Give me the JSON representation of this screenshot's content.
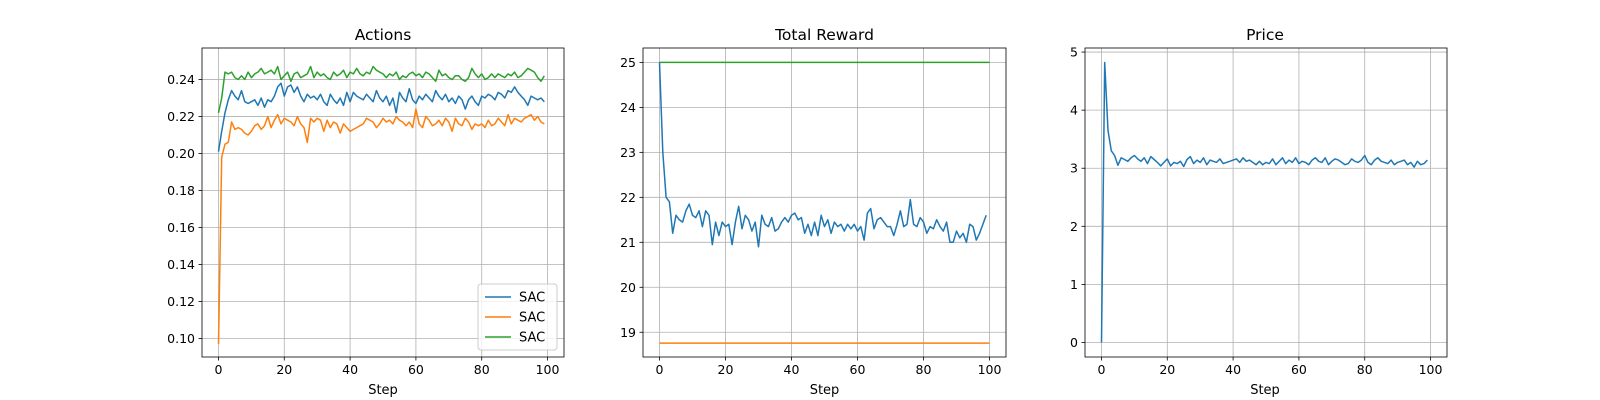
{
  "colors": {
    "blue": "#1f77b4",
    "orange": "#ff7f0e",
    "green": "#2ca02c",
    "grid": "#b0b0b0"
  },
  "chart_data": [
    {
      "type": "line",
      "title": "Actions",
      "xlabel": "Step",
      "ylabel": "",
      "xlim": [
        -5,
        105
      ],
      "ylim": [
        0.09,
        0.257
      ],
      "xticks": [
        0,
        20,
        40,
        60,
        80,
        100
      ],
      "yticks": [
        0.1,
        0.12,
        0.14,
        0.16,
        0.18,
        0.2,
        0.22,
        0.24
      ],
      "ytick_decimals": 2,
      "grid": true,
      "legend": "lower-right",
      "series": [
        {
          "name": "SAC",
          "color": "#1f77b4",
          "x_start": 0,
          "x_step": 1,
          "values": [
            0.201,
            0.212,
            0.222,
            0.229,
            0.234,
            0.231,
            0.229,
            0.234,
            0.228,
            0.227,
            0.228,
            0.229,
            0.226,
            0.23,
            0.225,
            0.229,
            0.228,
            0.231,
            0.236,
            0.238,
            0.231,
            0.236,
            0.237,
            0.233,
            0.236,
            0.231,
            0.228,
            0.232,
            0.23,
            0.231,
            0.229,
            0.232,
            0.228,
            0.226,
            0.232,
            0.229,
            0.227,
            0.23,
            0.226,
            0.233,
            0.228,
            0.233,
            0.231,
            0.23,
            0.229,
            0.232,
            0.23,
            0.228,
            0.234,
            0.23,
            0.228,
            0.231,
            0.226,
            0.23,
            0.222,
            0.233,
            0.23,
            0.228,
            0.235,
            0.229,
            0.227,
            0.231,
            0.229,
            0.232,
            0.23,
            0.228,
            0.234,
            0.231,
            0.229,
            0.232,
            0.228,
            0.23,
            0.227,
            0.231,
            0.229,
            0.224,
            0.229,
            0.231,
            0.228,
            0.226,
            0.231,
            0.23,
            0.232,
            0.231,
            0.229,
            0.233,
            0.232,
            0.23,
            0.234,
            0.233,
            0.236,
            0.233,
            0.231,
            0.229,
            0.226,
            0.231,
            0.23,
            0.229,
            0.23,
            0.228
          ]
        },
        {
          "name": "SAC",
          "color": "#ff7f0e",
          "x_start": 0,
          "x_step": 1,
          "values": [
            0.097,
            0.198,
            0.205,
            0.206,
            0.217,
            0.213,
            0.214,
            0.213,
            0.211,
            0.21,
            0.212,
            0.215,
            0.216,
            0.213,
            0.215,
            0.22,
            0.214,
            0.218,
            0.221,
            0.216,
            0.219,
            0.218,
            0.217,
            0.215,
            0.22,
            0.216,
            0.214,
            0.206,
            0.219,
            0.217,
            0.219,
            0.218,
            0.212,
            0.218,
            0.214,
            0.217,
            0.216,
            0.211,
            0.216,
            0.214,
            0.212,
            0.213,
            0.214,
            0.215,
            0.216,
            0.219,
            0.218,
            0.217,
            0.214,
            0.216,
            0.219,
            0.217,
            0.218,
            0.216,
            0.22,
            0.218,
            0.217,
            0.215,
            0.217,
            0.214,
            0.224,
            0.216,
            0.214,
            0.22,
            0.218,
            0.215,
            0.216,
            0.218,
            0.215,
            0.219,
            0.217,
            0.212,
            0.219,
            0.216,
            0.215,
            0.219,
            0.217,
            0.213,
            0.216,
            0.215,
            0.216,
            0.214,
            0.218,
            0.215,
            0.216,
            0.219,
            0.217,
            0.215,
            0.221,
            0.216,
            0.219,
            0.218,
            0.217,
            0.219,
            0.22,
            0.221,
            0.218,
            0.22,
            0.217,
            0.216
          ]
        },
        {
          "name": "SAC",
          "color": "#2ca02c",
          "x_start": 0,
          "x_step": 1,
          "values": [
            0.222,
            0.23,
            0.244,
            0.243,
            0.244,
            0.241,
            0.24,
            0.242,
            0.24,
            0.244,
            0.241,
            0.243,
            0.244,
            0.246,
            0.243,
            0.244,
            0.245,
            0.243,
            0.247,
            0.24,
            0.242,
            0.244,
            0.239,
            0.243,
            0.244,
            0.241,
            0.242,
            0.243,
            0.247,
            0.241,
            0.244,
            0.242,
            0.243,
            0.241,
            0.24,
            0.244,
            0.242,
            0.243,
            0.245,
            0.241,
            0.244,
            0.243,
            0.246,
            0.243,
            0.242,
            0.244,
            0.243,
            0.247,
            0.245,
            0.244,
            0.243,
            0.241,
            0.243,
            0.242,
            0.244,
            0.24,
            0.242,
            0.241,
            0.243,
            0.244,
            0.242,
            0.243,
            0.241,
            0.244,
            0.243,
            0.241,
            0.239,
            0.245,
            0.242,
            0.243,
            0.241,
            0.24,
            0.242,
            0.242,
            0.24,
            0.239,
            0.241,
            0.246,
            0.243,
            0.241,
            0.243,
            0.24,
            0.241,
            0.243,
            0.241,
            0.243,
            0.242,
            0.241,
            0.243,
            0.242,
            0.244,
            0.241,
            0.242,
            0.244,
            0.246,
            0.245,
            0.244,
            0.241,
            0.239,
            0.242
          ]
        }
      ]
    },
    {
      "type": "line",
      "title": "Total Reward",
      "xlabel": "Step",
      "ylabel": "",
      "xlim": [
        -5,
        105
      ],
      "ylim": [
        18.45,
        25.32
      ],
      "xticks": [
        0,
        20,
        40,
        60,
        80,
        100
      ],
      "yticks": [
        19,
        20,
        21,
        22,
        23,
        24,
        25
      ],
      "ytick_decimals": 0,
      "grid": true,
      "legend": "none",
      "series": [
        {
          "name": "",
          "color": "#2ca02c",
          "x": [
            0,
            100
          ],
          "y": [
            25,
            25
          ]
        },
        {
          "name": "",
          "color": "#ff7f0e",
          "x": [
            0,
            100
          ],
          "y": [
            18.76,
            18.76
          ]
        },
        {
          "name": "",
          "color": "#1f77b4",
          "x_start": 0,
          "x_step": 1,
          "values": [
            25.0,
            23.0,
            22.0,
            21.9,
            21.2,
            21.6,
            21.5,
            21.45,
            21.7,
            21.85,
            21.6,
            21.55,
            21.7,
            21.35,
            21.7,
            21.6,
            20.95,
            21.45,
            21.15,
            21.45,
            21.35,
            21.4,
            20.95,
            21.45,
            21.8,
            21.3,
            21.6,
            21.5,
            21.25,
            21.45,
            20.9,
            21.6,
            21.4,
            21.35,
            21.55,
            21.25,
            21.3,
            21.45,
            21.55,
            21.45,
            21.6,
            21.65,
            21.5,
            21.55,
            21.2,
            21.4,
            21.15,
            21.45,
            21.15,
            21.6,
            21.35,
            21.5,
            21.2,
            21.45,
            21.35,
            21.4,
            21.25,
            21.4,
            21.3,
            21.4,
            21.25,
            21.35,
            21.05,
            21.65,
            21.75,
            21.3,
            21.5,
            21.55,
            21.45,
            21.35,
            21.35,
            21.15,
            21.4,
            21.7,
            21.35,
            21.4,
            21.95,
            21.4,
            21.35,
            21.55,
            21.45,
            21.2,
            21.35,
            21.3,
            21.5,
            21.35,
            21.25,
            21.45,
            21.0,
            21.0,
            21.25,
            21.1,
            21.2,
            21.0,
            21.4,
            21.35,
            21.05,
            21.2,
            21.4,
            21.6
          ]
        }
      ]
    },
    {
      "type": "line",
      "title": "Price",
      "xlabel": "Step",
      "ylabel": "",
      "xlim": [
        -5,
        105
      ],
      "ylim": [
        -0.25,
        5.07
      ],
      "xticks": [
        0,
        20,
        40,
        60,
        80,
        100
      ],
      "yticks": [
        0,
        1,
        2,
        3,
        4,
        5
      ],
      "ytick_decimals": 0,
      "grid": true,
      "legend": "none",
      "series": [
        {
          "name": "",
          "color": "#1f77b4",
          "x_start": 0,
          "x_step": 1,
          "values": [
            0.0,
            4.82,
            3.65,
            3.3,
            3.22,
            3.05,
            3.18,
            3.15,
            3.12,
            3.18,
            3.22,
            3.16,
            3.12,
            3.18,
            3.08,
            3.2,
            3.15,
            3.1,
            3.04,
            3.1,
            3.16,
            3.04,
            3.1,
            3.08,
            3.12,
            3.03,
            3.15,
            3.2,
            3.08,
            3.14,
            3.1,
            3.18,
            3.06,
            3.14,
            3.12,
            3.1,
            3.16,
            3.08,
            3.1,
            3.12,
            3.14,
            3.16,
            3.1,
            3.18,
            3.12,
            3.14,
            3.1,
            3.06,
            3.12,
            3.06,
            3.1,
            3.08,
            3.16,
            3.06,
            3.12,
            3.18,
            3.08,
            3.14,
            3.1,
            3.18,
            3.08,
            3.12,
            3.1,
            3.06,
            3.14,
            3.18,
            3.12,
            3.1,
            3.18,
            3.06,
            3.12,
            3.16,
            3.14,
            3.1,
            3.06,
            3.08,
            3.16,
            3.12,
            3.1,
            3.14,
            3.22,
            3.1,
            3.06,
            3.14,
            3.18,
            3.12,
            3.1,
            3.08,
            3.14,
            3.06,
            3.1,
            3.12,
            3.14,
            3.06,
            3.1,
            3.02,
            3.12,
            3.06,
            3.08,
            3.14
          ]
        }
      ]
    }
  ]
}
